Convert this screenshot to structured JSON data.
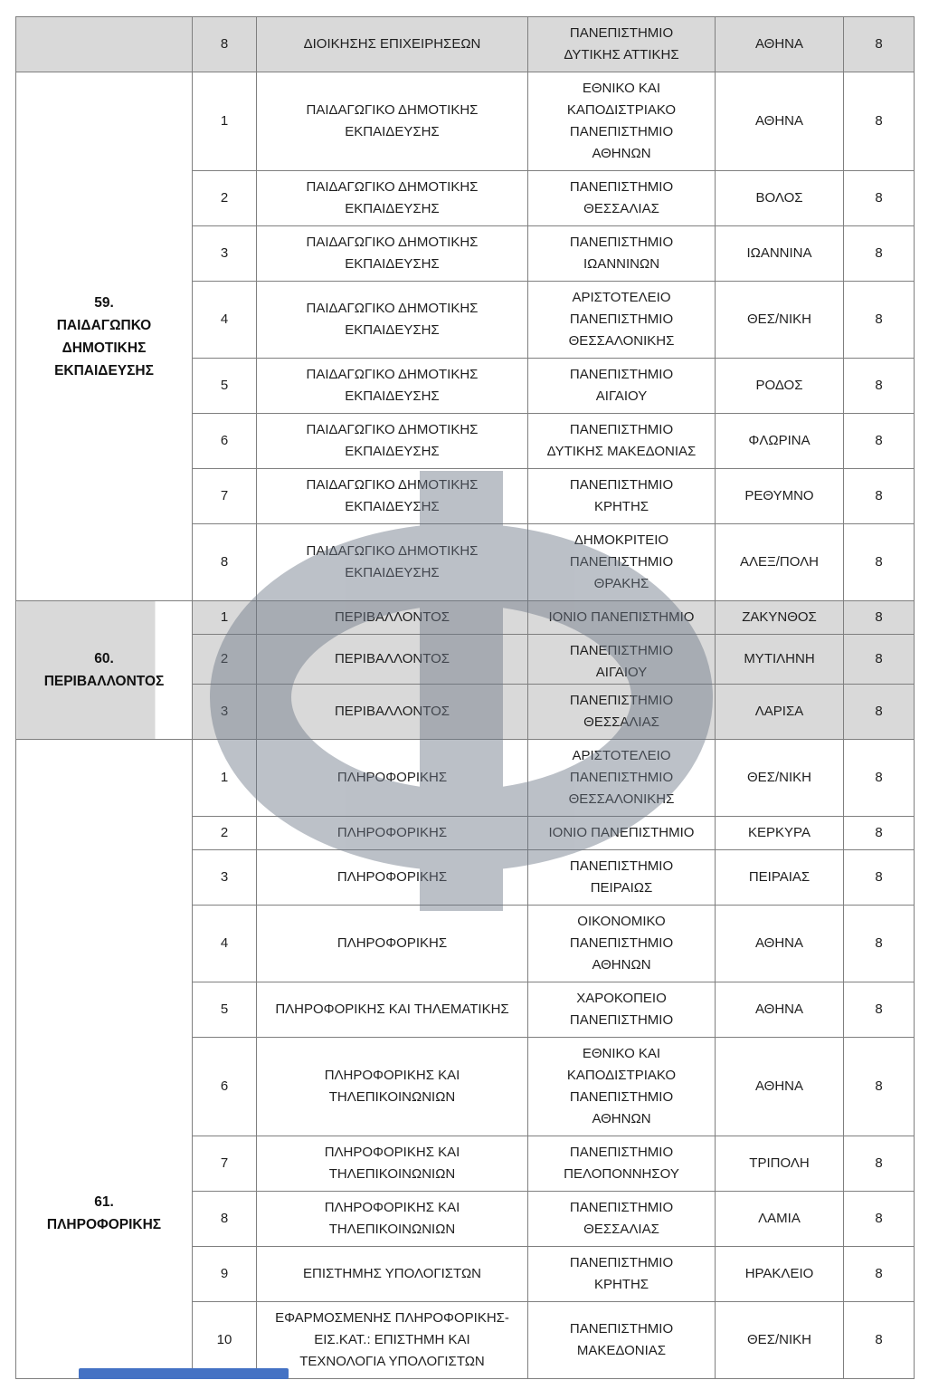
{
  "page": {
    "background": "#ffffff"
  },
  "watermark": {
    "glyph": "Φ",
    "color": "#6b7585",
    "opacity": 0.45
  },
  "footer_bar": {
    "color": "#4472c4"
  },
  "table": {
    "columns": [
      "group",
      "index",
      "department",
      "university",
      "city",
      "positions"
    ],
    "sections": [
      {
        "id": "58-tail",
        "label": "",
        "shaded": true,
        "rows": [
          {
            "index": "8",
            "department": "ΔΙΟΙΚΗΣΗΣ ΕΠΙΧΕΙΡΗΣΕΩΝ",
            "university": "ΠΑΝΕΠΙΣΤΗΜΙΟ\nΔΥΤΙΚΗΣ ΑΤΤΙΚΗΣ",
            "city": "ΑΘΗΝΑ",
            "positions": "8"
          }
        ]
      },
      {
        "id": "59",
        "label": "59.\nΠΑΙΔΑΓΩΠΚΟ\nΔΗΜΟΤΙΚΗΣ\nΕΚΠΑΙΔΕΥΣΗΣ",
        "shaded": false,
        "rows": [
          {
            "index": "1",
            "department": "ΠΑΙΔΑΓΩΓΙΚΟ ΔΗΜΟΤΙΚΗΣ\nΕΚΠΑΙΔΕΥΣΗΣ",
            "university": "ΕΘΝΙΚΟ ΚΑΙ\nΚΑΠΟΔΙΣΤΡΙΑΚΟ\nΠΑΝΕΠΙΣΤΗΜΙΟ\nΑΘΗΝΩΝ",
            "city": "ΑΘΗΝΑ",
            "positions": "8"
          },
          {
            "index": "2",
            "department": "ΠΑΙΔΑΓΩΓΙΚΟ ΔΗΜΟΤΙΚΗΣ\nΕΚΠΑΙΔΕΥΣΗΣ",
            "university": "ΠΑΝΕΠΙΣΤΗΜΙΟ\nΘΕΣΣΑΛΙΑΣ",
            "city": "ΒΟΛΟΣ",
            "positions": "8"
          },
          {
            "index": "3",
            "department": "ΠΑΙΔΑΓΩΓΙΚΟ ΔΗΜΟΤΙΚΗΣ\nΕΚΠΑΙΔΕΥΣΗΣ",
            "university": "ΠΑΝΕΠΙΣΤΗΜΙΟ\nΙΩΑΝΝΙΝΩΝ",
            "city": "ΙΩΑΝΝΙΝΑ",
            "positions": "8"
          },
          {
            "index": "4",
            "department": "ΠΑΙΔΑΓΩΓΙΚΟ ΔΗΜΟΤΙΚΗΣ\nΕΚΠΑΙΔΕΥΣΗΣ",
            "university": "ΑΡΙΣΤΟΤΕΛΕΙΟ\nΠΑΝΕΠΙΣΤΗΜΙΟ\nΘΕΣΣΑΛΟΝΙΚΗΣ",
            "city": "ΘΕΣ/ΝΙΚΗ",
            "positions": "8"
          },
          {
            "index": "5",
            "department": "ΠΑΙΔΑΓΩΓΙΚΟ ΔΗΜΟΤΙΚΗΣ\nΕΚΠΑΙΔΕΥΣΗΣ",
            "university": "ΠΑΝΕΠΙΣΤΗΜΙΟ\nΑΙΓΑΙΟΥ",
            "city": "ΡΟΔΟΣ",
            "positions": "8"
          },
          {
            "index": "6",
            "department": "ΠΑΙΔΑΓΩΓΙΚΟ ΔΗΜΟΤΙΚΗΣ\nΕΚΠΑΙΔΕΥΣΗΣ",
            "university": "ΠΑΝΕΠΙΣΤΗΜΙΟ\nΔΥΤΙΚΗΣ ΜΑΚΕΔΟΝΙΑΣ",
            "city": "ΦΛΩΡΙΝΑ",
            "positions": "8"
          },
          {
            "index": "7",
            "department": "ΠΑΙΔΑΓΩΓΙΚΟ ΔΗΜΟΤΙΚΗΣ\nΕΚΠΑΙΔΕΥΣΗΣ",
            "university": "ΠΑΝΕΠΙΣΤΗΜΙΟ\nΚΡΗΤΗΣ",
            "city": "ΡΕΘΥΜΝΟ",
            "positions": "8"
          },
          {
            "index": "8",
            "department": "ΠΑΙΔΑΓΩΓΙΚΟ ΔΗΜΟΤΙΚΗΣ\nΕΚΠΑΙΔΕΥΣΗΣ",
            "university": "ΔΗΜΟΚΡΙΤΕΙΟ\nΠΑΝΕΠΙΣΤΗΜΙΟ\nΘΡΑΚΗΣ",
            "city": "ΑΛΕΞ/ΠΟΛΗ",
            "positions": "8"
          }
        ]
      },
      {
        "id": "60",
        "label": "60.\nΠΕΡΙΒΑΛΛΟΝΤΟΣ",
        "shaded": true,
        "label_partial_fill": true,
        "rows": [
          {
            "index": "1",
            "department": "ΠΕΡΙΒΑΛΛΟΝΤΟΣ",
            "university": "ΙΟΝΙΟ ΠΑΝΕΠΙΣΤΗΜΙΟ",
            "city": "ΖΑΚΥΝΘΟΣ",
            "positions": "8"
          },
          {
            "index": "2",
            "department": "ΠΕΡΙΒΑΛΛΟΝΤΟΣ",
            "university": "ΠΑΝΕΠΙΣΤΗΜΙΟ\nΑΙΓΑΙΟΥ",
            "city": "ΜΥΤΙΛΗΝΗ",
            "positions": "8",
            "clip": true
          },
          {
            "index": "3",
            "department": "ΠΕΡΙΒΑΛΛΟΝΤΟΣ",
            "university": "ΠΑΝΕΠΙΣΤΗΜΙΟ\nΘΕΣΣΑΛΙΑΣ",
            "city": "ΛΑΡΙΣΑ",
            "positions": "8"
          }
        ]
      },
      {
        "id": "61",
        "label": "61.\nΠΛΗΡΟΦΟΡΙΚΗΣ",
        "shaded": false,
        "label_offset": true,
        "rows": [
          {
            "index": "1",
            "department": "ΠΛΗΡΟΦΟΡΙΚΗΣ",
            "university": "ΑΡΙΣΤΟΤΕΛΕΙΟ\nΠΑΝΕΠΙΣΤΗΜΙΟ\nΘΕΣΣΑΛΟΝΙΚΗΣ",
            "city": "ΘΕΣ/ΝΙΚΗ",
            "positions": "8"
          },
          {
            "index": "2",
            "department": "ΠΛΗΡΟΦΟΡΙΚΗΣ",
            "university": "ΙΟΝΙΟ ΠΑΝΕΠΙΣΤΗΜΙΟ",
            "city": "ΚΕΡΚΥΡΑ",
            "positions": "8"
          },
          {
            "index": "3",
            "department": "ΠΛΗΡΟΦΟΡΙΚΗΣ",
            "university": "ΠΑΝΕΠΙΣΤΗΜΙΟ\nΠΕΙΡΑΙΩΣ",
            "city": "ΠΕΙΡΑΙΑΣ",
            "positions": "8"
          },
          {
            "index": "4",
            "department": "ΠΛΗΡΟΦΟΡΙΚΗΣ",
            "university": "ΟΙΚΟΝΟΜΙΚΟ\nΠΑΝΕΠΙΣΤΗΜΙΟ\nΑΘΗΝΩΝ",
            "city": "ΑΘΗΝΑ",
            "positions": "8"
          },
          {
            "index": "5",
            "department": "ΠΛΗΡΟΦΟΡΙΚΗΣ ΚΑΙ ΤΗΛΕΜΑΤΙΚΗΣ",
            "university": "ΧΑΡΟΚΟΠΕΙΟ\nΠΑΝΕΠΙΣΤΗΜΙΟ",
            "city": "ΑΘΗΝΑ",
            "positions": "8"
          },
          {
            "index": "6",
            "department": "ΠΛΗΡΟΦΟΡΙΚΗΣ ΚΑΙ\nΤΗΛΕΠΙΚΟΙΝΩΝΙΩΝ",
            "university": "ΕΘΝΙΚΟ ΚΑΙ\nΚΑΠΟΔΙΣΤΡΙΑΚΟ\nΠΑΝΕΠΙΣΤΗΜΙΟ\nΑΘΗΝΩΝ",
            "city": "ΑΘΗΝΑ",
            "positions": "8"
          },
          {
            "index": "7",
            "department": "ΠΛΗΡΟΦΟΡΙΚΗΣ ΚΑΙ\nΤΗΛΕΠΙΚΟΙΝΩΝΙΩΝ",
            "university": "ΠΑΝΕΠΙΣΤΗΜΙΟ\nΠΕΛΟΠΟΝΝΗΣΟΥ",
            "city": "ΤΡΙΠΟΛΗ",
            "positions": "8"
          },
          {
            "index": "8",
            "department": "ΠΛΗΡΟΦΟΡΙΚΗΣ ΚΑΙ\nΤΗΛΕΠΙΚΟΙΝΩΝΙΩΝ",
            "university": "ΠΑΝΕΠΙΣΤΗΜΙΟ\nΘΕΣΣΑΛΙΑΣ",
            "city": "ΛΑΜΙΑ",
            "positions": "8"
          },
          {
            "index": "9",
            "department": "ΕΠΙΣΤΗΜΗΣ ΥΠΟΛΟΓΙΣΤΩΝ",
            "university": "ΠΑΝΕΠΙΣΤΗΜΙΟ\nΚΡΗΤΗΣ",
            "city": "ΗΡΑΚΛΕΙΟ",
            "positions": "8"
          },
          {
            "index": "10",
            "department": "ΕΦΑΡΜΟΣΜΕΝΗΣ ΠΛΗΡΟΦΟΡΙΚΗΣ-\nΕΙΣ.ΚΑΤ.:  ΕΠΙΣΤΗΜΗ ΚΑΙ\nΤΕΧΝΟΛΟΓΙΑ ΥΠΟΛΟΓΙΣΤΩΝ",
            "university": "ΠΑΝΕΠΙΣΤΗΜΙΟ\nΜΑΚΕΔΟΝΙΑΣ",
            "city": "ΘΕΣ/ΝΙΚΗ",
            "positions": "8"
          }
        ]
      }
    ]
  }
}
